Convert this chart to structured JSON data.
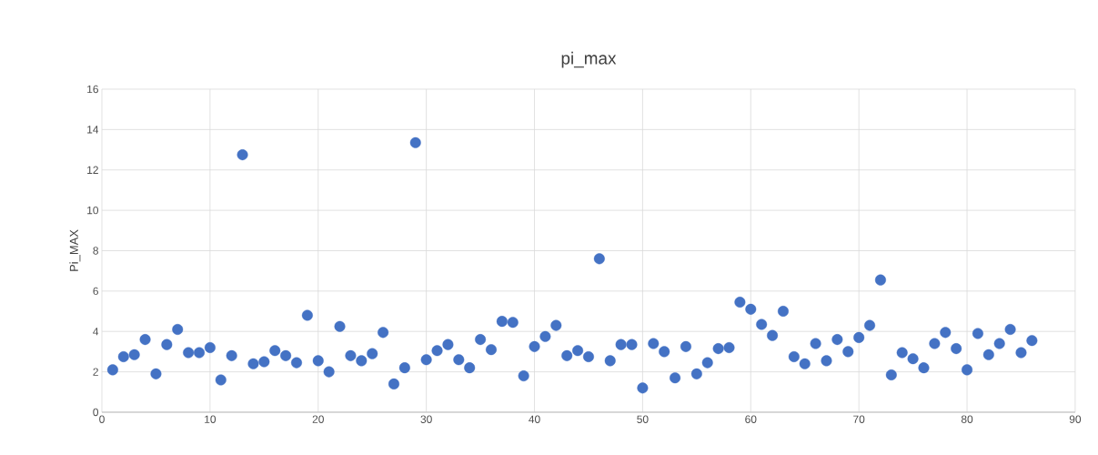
{
  "chart_data": {
    "type": "scatter",
    "title": "pi_max",
    "ylabel": "Pi_MAX",
    "x": [
      1,
      2,
      3,
      4,
      5,
      6,
      7,
      8,
      9,
      10,
      11,
      12,
      13,
      14,
      15,
      16,
      17,
      18,
      19,
      20,
      21,
      22,
      23,
      24,
      25,
      26,
      27,
      28,
      29,
      30,
      31,
      32,
      33,
      34,
      35,
      36,
      37,
      38,
      39,
      40,
      41,
      42,
      43,
      44,
      45,
      46,
      47,
      48,
      49,
      50,
      51,
      52,
      53,
      54,
      55,
      56,
      57,
      58,
      59,
      60,
      61,
      62,
      63,
      64,
      65,
      66,
      67,
      68,
      69,
      70,
      71,
      72,
      73,
      74,
      75,
      76,
      77,
      78,
      79,
      80,
      81,
      82,
      83,
      84,
      85,
      86
    ],
    "values": [
      2.1,
      2.75,
      2.85,
      3.6,
      1.9,
      3.35,
      4.1,
      2.95,
      2.95,
      3.2,
      1.6,
      2.8,
      12.75,
      2.4,
      2.5,
      3.05,
      2.8,
      2.45,
      4.8,
      2.55,
      2.0,
      4.25,
      2.8,
      2.55,
      2.9,
      3.95,
      1.4,
      2.2,
      13.35,
      2.6,
      3.05,
      3.35,
      2.6,
      2.2,
      3.6,
      3.1,
      4.5,
      4.45,
      1.8,
      3.25,
      3.75,
      4.3,
      2.8,
      3.05,
      2.75,
      7.6,
      2.55,
      3.35,
      3.35,
      1.2,
      3.4,
      3.0,
      1.7,
      3.25,
      1.9,
      2.45,
      3.15,
      3.2,
      5.45,
      5.1,
      4.35,
      3.8,
      5.0,
      2.75,
      2.4,
      3.4,
      2.55,
      3.6,
      3.0,
      3.7,
      4.3,
      6.55,
      1.85,
      2.95,
      2.65,
      2.2,
      3.4,
      3.95,
      3.15,
      2.1,
      3.9,
      2.85,
      3.4,
      4.1,
      2.95,
      3.55
    ],
    "color": "#4472c4",
    "marker": "circle",
    "grid": true,
    "xlim": [
      0,
      90
    ],
    "xticks": [
      0,
      10,
      20,
      30,
      40,
      50,
      60,
      70,
      80,
      90
    ],
    "ylim": [
      0,
      16
    ],
    "yticks": [
      0,
      2,
      4,
      6,
      8,
      10,
      12,
      14,
      16
    ]
  }
}
